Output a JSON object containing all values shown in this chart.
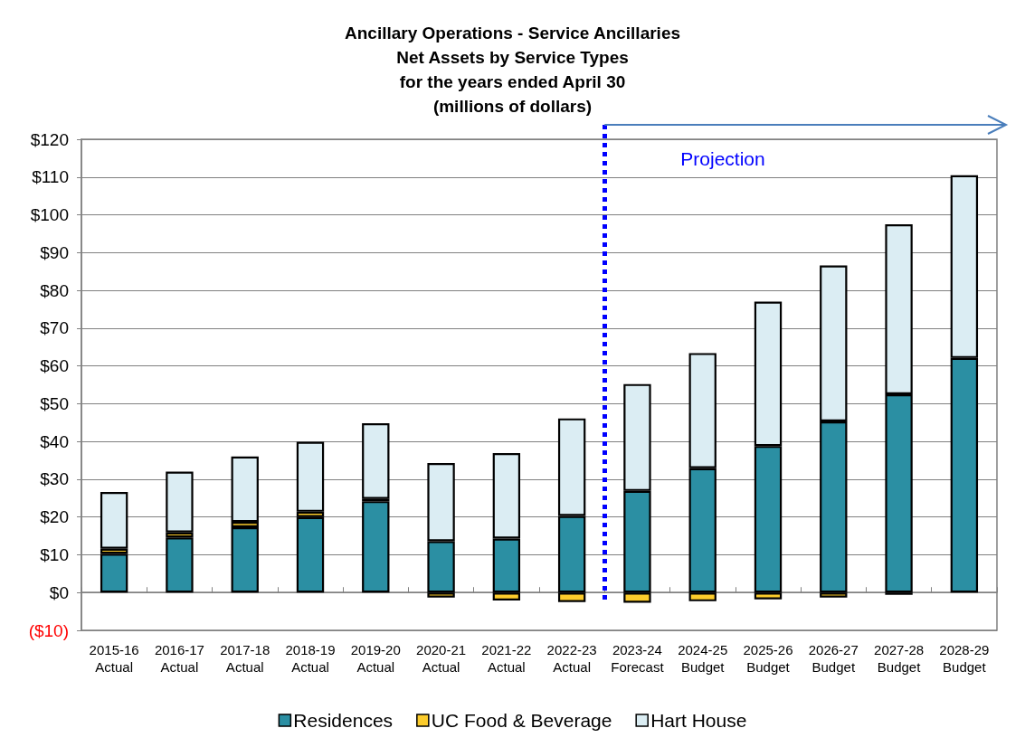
{
  "chart_data": {
    "type": "bar",
    "title": "Ancillary Operations - Service Ancillaries\nNet Assets by Service Types\nfor the years ended April 30\n(millions of dollars)",
    "categories": [
      "2015-16\nActual",
      "2016-17\nActual",
      "2017-18\nActual",
      "2018-19\nActual",
      "2019-20\nActual",
      "2020-21\nActual",
      "2021-22\nActual",
      "2022-23\nActual",
      "2023-24\nForecast",
      "2024-25\nBudget",
      "2025-26\nBudget",
      "2026-27\nBudget",
      "2027-28\nBudget",
      "2028-29\nBudget"
    ],
    "series": [
      {
        "name": "Residences",
        "color": "#2b8fa3",
        "values": [
          10.3,
          14.6,
          17.3,
          20.0,
          24.2,
          13.6,
          14.3,
          20.3,
          26.9,
          32.9,
          38.8,
          45.3,
          52.5,
          62.1
        ]
      },
      {
        "name": "UC Food & Beverage",
        "color": "#fccc2c",
        "values": [
          1.3,
          1.3,
          1.4,
          1.4,
          0.6,
          -1.3,
          -2.1,
          -2.5,
          -2.7,
          -2.3,
          -1.8,
          -1.3,
          -0.6,
          null
        ]
      },
      {
        "name": "Hart House",
        "color": "#dbedf3",
        "values": [
          15.0,
          16.1,
          17.3,
          18.5,
          20.0,
          20.7,
          22.6,
          25.8,
          28.3,
          30.5,
          38.2,
          41.3,
          45.0,
          48.4
        ]
      }
    ],
    "stacked": true,
    "ylim": [
      -10,
      120
    ],
    "yticks": [
      {
        "value": -10,
        "label": "($10)"
      },
      {
        "value": 0,
        "label": "$0"
      },
      {
        "value": 10,
        "label": "$10"
      },
      {
        "value": 20,
        "label": "$20"
      },
      {
        "value": 30,
        "label": "$30"
      },
      {
        "value": 40,
        "label": "$40"
      },
      {
        "value": 50,
        "label": "$50"
      },
      {
        "value": 60,
        "label": "$60"
      },
      {
        "value": 70,
        "label": "$70"
      },
      {
        "value": 80,
        "label": "$80"
      },
      {
        "value": 90,
        "label": "$90"
      },
      {
        "value": 100,
        "label": "$100"
      },
      {
        "value": 110,
        "label": "$110"
      },
      {
        "value": 120,
        "label": "$120"
      }
    ],
    "ref_lines": [
      {
        "axis": "x",
        "value": "2023-24\nForecast",
        "label": "Projection",
        "color": "#0000ff",
        "line_style": "dotted"
      }
    ],
    "grid": "y",
    "legend": "bottom"
  }
}
